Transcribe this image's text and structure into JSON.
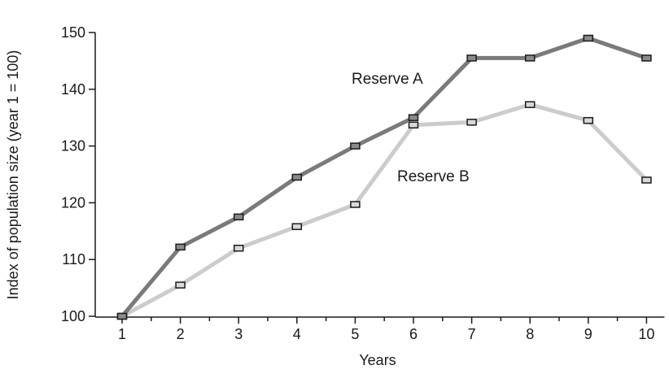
{
  "chart_data": {
    "type": "line",
    "xlabel": "Years",
    "ylabel": "Index of population size (year 1 = 100)",
    "x": [
      1,
      2,
      3,
      4,
      5,
      6,
      7,
      8,
      9,
      10
    ],
    "ylim": [
      100,
      150
    ],
    "yticks": [
      100,
      110,
      120,
      130,
      140,
      150
    ],
    "grid": false,
    "series": [
      {
        "name": "Reserve A",
        "color": "#7a7a7a",
        "marker_fill": "#8a8a8a",
        "values": [
          100,
          112.2,
          117.5,
          124.5,
          130,
          135,
          145.5,
          145.5,
          149,
          145.5
        ]
      },
      {
        "name": "Reserve B",
        "color": "#cccccc",
        "marker_fill": "#d9d9d9",
        "values": [
          100,
          105.5,
          112,
          115.8,
          119.7,
          133.7,
          134.2,
          137.3,
          134.5,
          124
        ]
      }
    ]
  }
}
